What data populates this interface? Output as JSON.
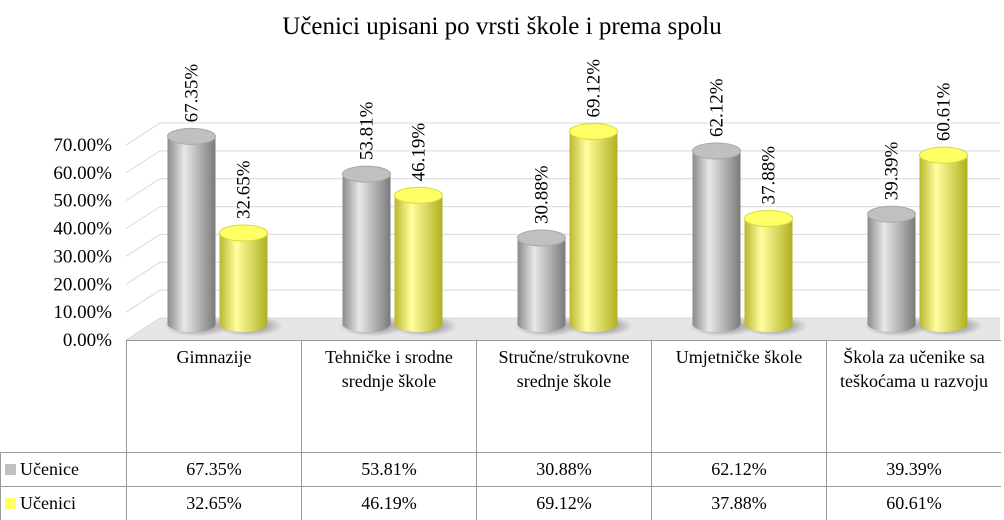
{
  "chart_data": {
    "type": "bar",
    "title": "Učenici upisani po vrsti škole i prema spolu",
    "categories": [
      "Gimnazije",
      "Tehničke i srodne srednje škole",
      "Stručne/strukovne srednje škole",
      "Umjetničke škole",
      "Škola za učenike sa teškoćama u razvoju"
    ],
    "series": [
      {
        "name": "Učenice",
        "color": "#c0c0c0",
        "values": [
          67.35,
          53.81,
          30.88,
          62.12,
          39.39
        ],
        "value_labels": [
          "67.35%",
          "53.81%",
          "30.88%",
          "62.12%",
          "39.39%"
        ]
      },
      {
        "name": "Učenici",
        "color": "#ffff66",
        "values": [
          32.65,
          46.19,
          69.12,
          37.88,
          60.61
        ],
        "value_labels": [
          "32.65%",
          "46.19%",
          "69.12%",
          "37.88%",
          "60.61%"
        ]
      }
    ],
    "ylim": [
      0,
      70
    ],
    "yticks": [
      {
        "value": 0,
        "label": "0.00%"
      },
      {
        "value": 10,
        "label": "10.00%"
      },
      {
        "value": 20,
        "label": "20.00%"
      },
      {
        "value": 30,
        "label": "30.00%"
      },
      {
        "value": 40,
        "label": "40.00%"
      },
      {
        "value": 50,
        "label": "50.00%"
      },
      {
        "value": 60,
        "label": "60.00%"
      },
      {
        "value": 70,
        "label": "70.00%"
      }
    ],
    "grid": true
  }
}
